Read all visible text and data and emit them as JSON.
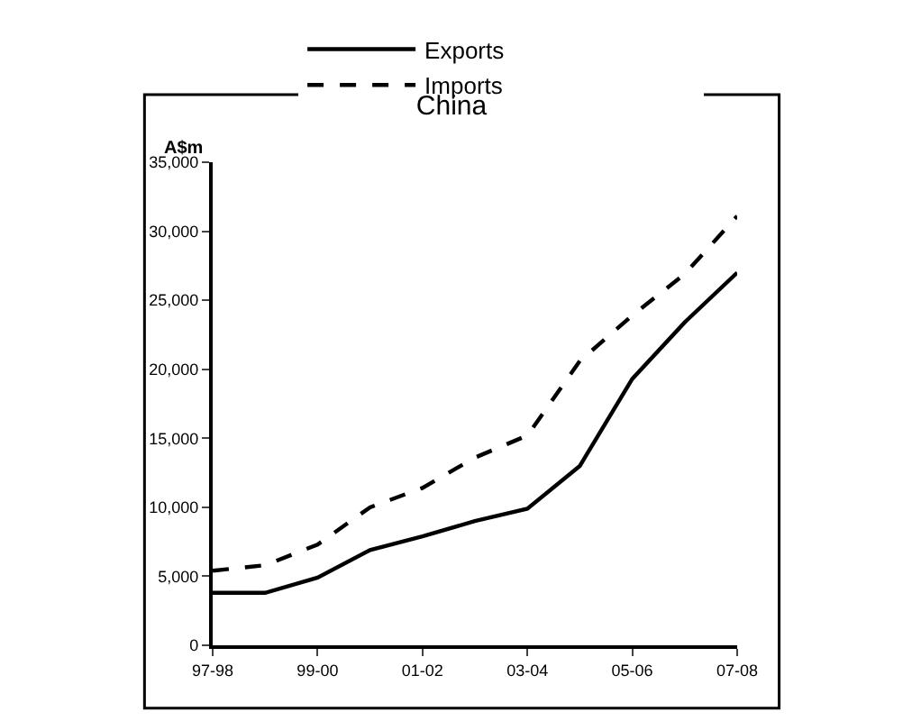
{
  "chart_data": {
    "type": "line",
    "title": "China",
    "ylabel": "A$m",
    "categories": [
      "97-98",
      null,
      "99-00",
      null,
      "01-02",
      null,
      "03-04",
      null,
      "05-06",
      null,
      "07-08"
    ],
    "series": [
      {
        "name": "Exports",
        "color": "#000000",
        "line_style": "solid",
        "values": [
          3800,
          3800,
          4900,
          6900,
          7900,
          9000,
          9900,
          13000,
          19300,
          23400,
          27000
        ]
      },
      {
        "name": "Imports",
        "color": "#000000",
        "line_style": "dashed",
        "values": [
          5400,
          5800,
          7300,
          10000,
          11400,
          13600,
          15200,
          20600,
          23900,
          26900,
          31100
        ]
      }
    ],
    "ylim": [
      0,
      35000
    ],
    "yticks": [
      {
        "value": 0,
        "label": "0"
      },
      {
        "value": 5000,
        "label": "5,000"
      },
      {
        "value": 10000,
        "label": "10,000"
      },
      {
        "value": 15000,
        "label": "15,000"
      },
      {
        "value": 20000,
        "label": "20,000"
      },
      {
        "value": 25000,
        "label": "25,000"
      },
      {
        "value": 30000,
        "label": "30,000"
      },
      {
        "value": 35000,
        "label": "35,000"
      }
    ],
    "grid": false,
    "legend": "top",
    "marker": "none"
  }
}
